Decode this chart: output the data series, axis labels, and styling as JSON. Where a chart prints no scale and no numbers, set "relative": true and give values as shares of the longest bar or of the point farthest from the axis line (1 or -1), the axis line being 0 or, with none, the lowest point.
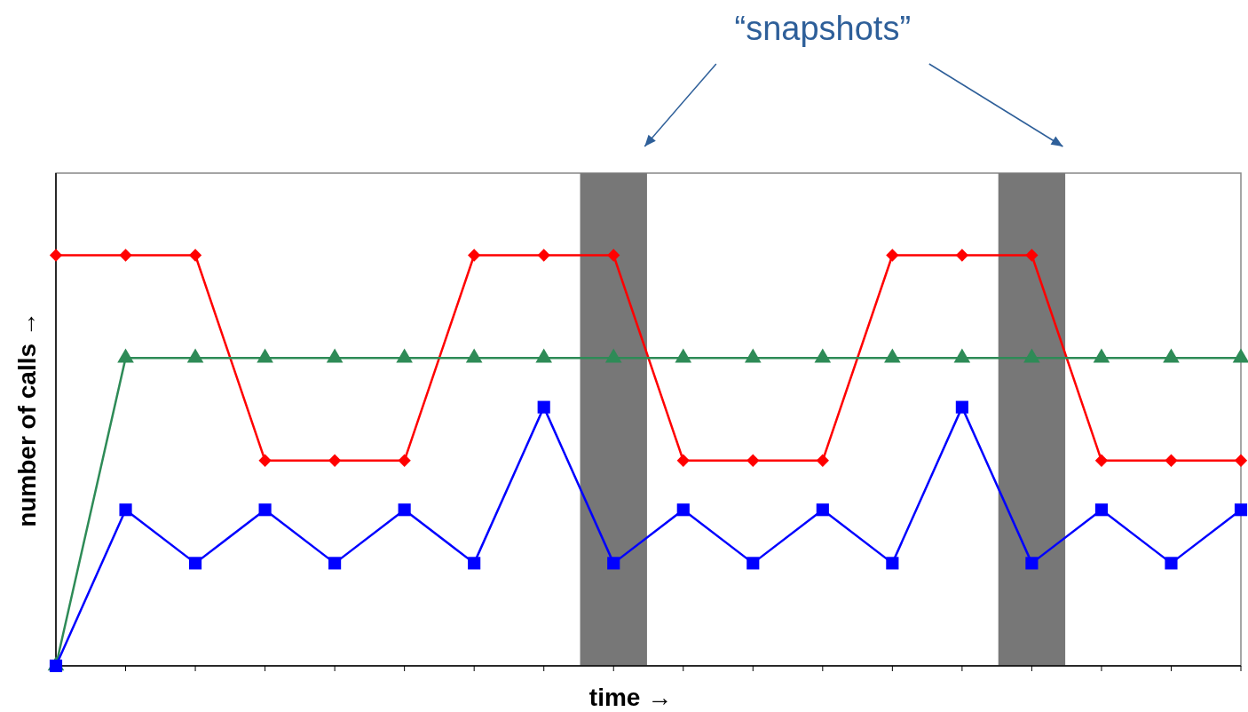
{
  "chart_data": {
    "type": "line",
    "relative": true,
    "xlabel": "time →",
    "ylabel": "number of calls →",
    "annotations": [
      "“snapshots”"
    ],
    "categories": [
      null,
      null,
      null,
      null,
      null,
      null,
      null,
      null,
      null,
      null,
      null,
      null,
      null,
      null,
      null,
      null,
      null,
      null
    ],
    "line_style": "solid",
    "series": [
      {
        "color": "#ff0000",
        "marker": "diamond",
        "values": [
          1,
          1,
          1,
          0.5,
          0.5,
          0.5,
          1,
          1,
          1,
          0.5,
          0.5,
          0.5,
          1,
          1,
          1,
          0.5,
          0.5,
          0.5
        ]
      },
      {
        "color": "#2e8b57",
        "marker": "triangle",
        "values": [
          0,
          0.75,
          0.75,
          0.75,
          0.75,
          0.75,
          0.75,
          0.75,
          0.75,
          0.75,
          0.75,
          0.75,
          0.75,
          0.75,
          0.75,
          0.75,
          0.75,
          0.75
        ]
      },
      {
        "color": "#0000ff",
        "marker": "square",
        "values": [
          0,
          0.38,
          0.25,
          0.38,
          0.25,
          0.38,
          0.25,
          0.63,
          0.25,
          0.38,
          0.25,
          0.38,
          0.25,
          0.63,
          0.25,
          0.38,
          0.25,
          0.38
        ]
      }
    ]
  }
}
